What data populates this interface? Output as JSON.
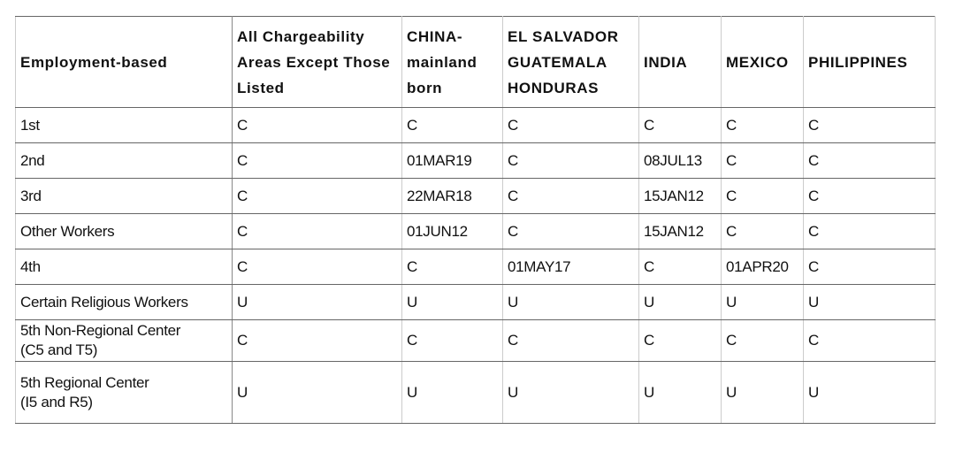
{
  "table": {
    "headers": [
      "Employment-based",
      "All Chargeability Areas Except Those Listed",
      "CHINA-mainland born",
      "EL SALVADOR GUATEMALA HONDURAS",
      "INDIA",
      "MEXICO",
      "PHILIPPINES"
    ],
    "rows": [
      [
        "1st",
        "C",
        "C",
        "C",
        "C",
        "C",
        "C"
      ],
      [
        "2nd",
        "C",
        "01MAR19",
        "C",
        "08JUL13",
        "C",
        "C"
      ],
      [
        "3rd",
        "C",
        "22MAR18",
        "C",
        "15JAN12",
        "C",
        "C"
      ],
      [
        "Other Workers",
        "C",
        "01JUN12",
        "C",
        "15JAN12",
        "C",
        "C"
      ],
      [
        "4th",
        "C",
        "C",
        "01MAY17",
        "C",
        "01APR20",
        "C"
      ],
      [
        "Certain Religious Workers",
        "U",
        "U",
        "U",
        "U",
        "U",
        "U"
      ],
      [
        "5th Non-Regional Center (C5 and T5)",
        "C",
        "C",
        "C",
        "C",
        "C",
        "C"
      ],
      [
        "5th Regional Center (I5 and R5)",
        "U",
        "U",
        "U",
        "U",
        "U",
        "U"
      ]
    ]
  }
}
